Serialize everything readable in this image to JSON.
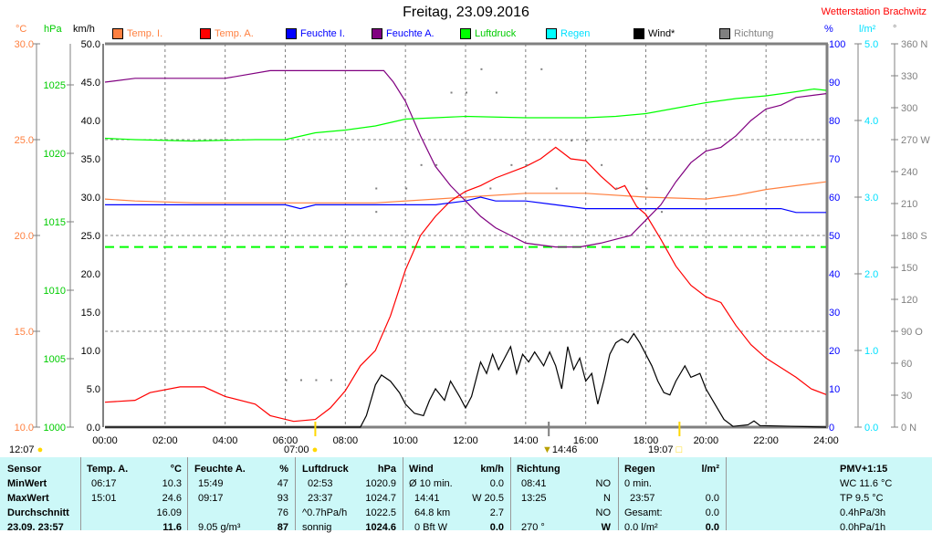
{
  "title": "Freitag, 23.09.2016",
  "station": "Wetterstation Brachwitz",
  "units": {
    "temp": "°C",
    "hpa": "hPa",
    "kmh": "km/h",
    "pct": "%",
    "rain": "l/m²",
    "deg": "°"
  },
  "legend": [
    {
      "label": "Temp. I.",
      "color": "#ff8040",
      "text": "#ff8040"
    },
    {
      "label": "Temp. A.",
      "color": "#ff0000",
      "text": "#ff8040"
    },
    {
      "label": "Feuchte I.",
      "color": "#0000ff",
      "text": "#0000ff"
    },
    {
      "label": "Feuchte A.",
      "color": "#800080",
      "text": "#0000ff"
    },
    {
      "label": "Luftdruck",
      "color": "#00ff00",
      "text": "#00cc00"
    },
    {
      "label": "Regen",
      "color": "#00ffff",
      "text": "#00e0ff"
    },
    {
      "label": "Wind*",
      "color": "#000000",
      "text": "#000000"
    },
    {
      "label": "Richtung",
      "color": "#808080",
      "text": "#808080"
    }
  ],
  "chart_data": {
    "type": "line",
    "title": "Freitag, 23.09.2016",
    "x_ticks": [
      "00:00",
      "02:00",
      "04:00",
      "06:00",
      "08:00",
      "10:00",
      "12:00",
      "14:00",
      "16:00",
      "18:00",
      "20:00",
      "22:00",
      "24:00"
    ],
    "axes": {
      "temp": {
        "range": [
          10,
          30
        ],
        "ticks": [
          "10.0",
          "15.0",
          "20.0",
          "25.0",
          "30.0"
        ],
        "color": "#ff8040"
      },
      "hpa": {
        "range": [
          1000,
          1028
        ],
        "ticks": [
          "1000",
          "1005",
          "1010",
          "1015",
          "1020",
          "1025"
        ],
        "color": "#00cc00"
      },
      "kmh": {
        "range": [
          0,
          50
        ],
        "ticks": [
          "0.0",
          "5.0",
          "10.0",
          "15.0",
          "20.0",
          "25.0",
          "30.0",
          "35.0",
          "40.0",
          "45.0",
          "50.0"
        ],
        "color": "#000000"
      },
      "pct": {
        "range": [
          0,
          100
        ],
        "ticks": [
          "0",
          "10",
          "20",
          "30",
          "40",
          "50",
          "60",
          "70",
          "80",
          "90",
          "100"
        ],
        "color": "#0000ff"
      },
      "rain": {
        "range": [
          0,
          5
        ],
        "ticks": [
          "0.0",
          "1.0",
          "2.0",
          "3.0",
          "4.0",
          "5.0"
        ],
        "color": "#00e0ff"
      },
      "deg": {
        "range": [
          0,
          360
        ],
        "ticks": [
          "0 N",
          "30",
          "60",
          "90 O",
          "120",
          "150",
          "180 S",
          "210",
          "240",
          "270 W",
          "300",
          "330",
          "360 N"
        ],
        "color": "#808080"
      }
    },
    "series": [
      {
        "name": "Temp. I.",
        "axis": "temp",
        "color": "#ff8040",
        "points": [
          [
            0,
            21.9
          ],
          [
            1,
            21.8
          ],
          [
            3,
            21.7
          ],
          [
            6,
            21.7
          ],
          [
            9,
            21.7
          ],
          [
            11,
            21.9
          ],
          [
            12,
            22.0
          ],
          [
            14,
            22.2
          ],
          [
            16,
            22.2
          ],
          [
            18,
            22.0
          ],
          [
            20,
            21.9
          ],
          [
            21,
            22.1
          ],
          [
            22,
            22.4
          ],
          [
            23,
            22.6
          ],
          [
            24,
            22.8
          ]
        ]
      },
      {
        "name": "Temp. A.",
        "axis": "temp",
        "color": "#ff0000",
        "points": [
          [
            0,
            11.3
          ],
          [
            1,
            11.4
          ],
          [
            1.5,
            11.8
          ],
          [
            2.5,
            12.1
          ],
          [
            3.3,
            12.1
          ],
          [
            4,
            11.6
          ],
          [
            5,
            11.2
          ],
          [
            5.5,
            10.6
          ],
          [
            6.28,
            10.3
          ],
          [
            7,
            10.4
          ],
          [
            7.5,
            11.0
          ],
          [
            8,
            11.9
          ],
          [
            8.5,
            13.2
          ],
          [
            9,
            14.0
          ],
          [
            9.5,
            15.8
          ],
          [
            10,
            18.2
          ],
          [
            10.5,
            20.0
          ],
          [
            11,
            21.0
          ],
          [
            11.5,
            21.8
          ],
          [
            12,
            22.3
          ],
          [
            12.5,
            22.6
          ],
          [
            13,
            23.0
          ],
          [
            14,
            23.6
          ],
          [
            14.5,
            24.0
          ],
          [
            15,
            24.6
          ],
          [
            15.5,
            24.0
          ],
          [
            16,
            23.9
          ],
          [
            16.5,
            23.1
          ],
          [
            17,
            22.4
          ],
          [
            17.3,
            22.6
          ],
          [
            17.7,
            21.5
          ],
          [
            18,
            21.1
          ],
          [
            18.5,
            19.8
          ],
          [
            19,
            18.4
          ],
          [
            19.5,
            17.4
          ],
          [
            20,
            16.8
          ],
          [
            20.5,
            16.5
          ],
          [
            21,
            15.3
          ],
          [
            21.5,
            14.3
          ],
          [
            22,
            13.6
          ],
          [
            22.5,
            13.1
          ],
          [
            23,
            12.6
          ],
          [
            23.5,
            12.0
          ],
          [
            24,
            11.7
          ]
        ]
      },
      {
        "name": "Feuchte I.",
        "axis": "pct",
        "color": "#0000ff",
        "points": [
          [
            0,
            58
          ],
          [
            6,
            58
          ],
          [
            6.5,
            57
          ],
          [
            7,
            58
          ],
          [
            9,
            58
          ],
          [
            11,
            58
          ],
          [
            12,
            59
          ],
          [
            12.5,
            60
          ],
          [
            13,
            59
          ],
          [
            14,
            59
          ],
          [
            15,
            58
          ],
          [
            16,
            57
          ],
          [
            18,
            57
          ],
          [
            20,
            57
          ],
          [
            22,
            57
          ],
          [
            22.5,
            57
          ],
          [
            23,
            56
          ],
          [
            24,
            56
          ]
        ]
      },
      {
        "name": "Feuchte A.",
        "axis": "pct",
        "color": "#800080",
        "points": [
          [
            0,
            90
          ],
          [
            1,
            91
          ],
          [
            2,
            91
          ],
          [
            4,
            91
          ],
          [
            5.5,
            93
          ],
          [
            9.28,
            93
          ],
          [
            9.6,
            90
          ],
          [
            10,
            85
          ],
          [
            10.5,
            76
          ],
          [
            11,
            68
          ],
          [
            11.5,
            63
          ],
          [
            12,
            59
          ],
          [
            12.5,
            55
          ],
          [
            13,
            52
          ],
          [
            13.5,
            50
          ],
          [
            14,
            48
          ],
          [
            15,
            47
          ],
          [
            15.8,
            47
          ],
          [
            16.5,
            48
          ],
          [
            17,
            49
          ],
          [
            17.5,
            50
          ],
          [
            18,
            54
          ],
          [
            18.5,
            58
          ],
          [
            19,
            64
          ],
          [
            19.5,
            69
          ],
          [
            20,
            72
          ],
          [
            20.5,
            73
          ],
          [
            21,
            76
          ],
          [
            21.5,
            80
          ],
          [
            22,
            83
          ],
          [
            22.5,
            84
          ],
          [
            23,
            86
          ],
          [
            24,
            87
          ]
        ]
      },
      {
        "name": "Luftdruck",
        "axis": "hpa",
        "color": "#00ff00",
        "points": [
          [
            0,
            1021.1
          ],
          [
            1,
            1021.0
          ],
          [
            2.9,
            1020.9
          ],
          [
            5,
            1021.0
          ],
          [
            6,
            1021.0
          ],
          [
            7,
            1021.5
          ],
          [
            8,
            1021.7
          ],
          [
            9,
            1022.0
          ],
          [
            10,
            1022.5
          ],
          [
            11,
            1022.6
          ],
          [
            12,
            1022.7
          ],
          [
            14,
            1022.6
          ],
          [
            16,
            1022.6
          ],
          [
            17,
            1022.7
          ],
          [
            18,
            1022.9
          ],
          [
            19,
            1023.3
          ],
          [
            20,
            1023.7
          ],
          [
            21,
            1024.0
          ],
          [
            22,
            1024.2
          ],
          [
            23,
            1024.5
          ],
          [
            23.6,
            1024.7
          ],
          [
            24,
            1024.6
          ]
        ]
      },
      {
        "name": "Wind*",
        "axis": "kmh",
        "color": "#000000",
        "points": [
          [
            0,
            0
          ],
          [
            8.5,
            0
          ],
          [
            8.7,
            1.5
          ],
          [
            9,
            5.5
          ],
          [
            9.2,
            6.8
          ],
          [
            9.5,
            6
          ],
          [
            9.8,
            4.5
          ],
          [
            10,
            3
          ],
          [
            10.3,
            1.8
          ],
          [
            10.6,
            1.5
          ],
          [
            10.8,
            3.5
          ],
          [
            11.0,
            5
          ],
          [
            11.3,
            3.5
          ],
          [
            11.5,
            6
          ],
          [
            11.8,
            4
          ],
          [
            12,
            2.5
          ],
          [
            12.2,
            4
          ],
          [
            12.3,
            5.5
          ],
          [
            12.5,
            8.5
          ],
          [
            12.7,
            7
          ],
          [
            12.9,
            9.5
          ],
          [
            13.1,
            7.5
          ],
          [
            13.3,
            9
          ],
          [
            13.5,
            10.5
          ],
          [
            13.7,
            7
          ],
          [
            13.9,
            9.5
          ],
          [
            14.1,
            8.5
          ],
          [
            14.3,
            9.8
          ],
          [
            14.6,
            8
          ],
          [
            14.8,
            9.8
          ],
          [
            15,
            8
          ],
          [
            15.2,
            5
          ],
          [
            15.4,
            10.5
          ],
          [
            15.6,
            7.5
          ],
          [
            15.8,
            9
          ],
          [
            16,
            6
          ],
          [
            16.2,
            7
          ],
          [
            16.4,
            3
          ],
          [
            16.6,
            6
          ],
          [
            16.8,
            9.5
          ],
          [
            17,
            11
          ],
          [
            17.2,
            11.5
          ],
          [
            17.4,
            11
          ],
          [
            17.6,
            12.2
          ],
          [
            17.8,
            11
          ],
          [
            18,
            9.5
          ],
          [
            18.2,
            8
          ],
          [
            18.4,
            6
          ],
          [
            18.6,
            4.5
          ],
          [
            18.8,
            4.2
          ],
          [
            19,
            6
          ],
          [
            19.3,
            8
          ],
          [
            19.5,
            6.5
          ],
          [
            19.8,
            7
          ],
          [
            20,
            5
          ],
          [
            20.3,
            3
          ],
          [
            20.6,
            1
          ],
          [
            20.9,
            0.1
          ],
          [
            21.4,
            0.3
          ],
          [
            21.6,
            0.8
          ],
          [
            21.8,
            0.2
          ],
          [
            24,
            0
          ]
        ]
      },
      {
        "name": "Richtung",
        "axis": "deg",
        "color": "#808080",
        "type": "scatter",
        "points": [
          [
            6,
            45
          ],
          [
            6.5,
            45
          ],
          [
            7,
            45
          ],
          [
            7.5,
            45
          ],
          [
            8,
            135
          ],
          [
            9,
            225
          ],
          [
            9,
            203
          ],
          [
            10,
            225
          ],
          [
            10.5,
            247
          ],
          [
            11,
            247
          ],
          [
            11.5,
            315
          ],
          [
            12,
            315
          ],
          [
            12.5,
            337
          ],
          [
            13,
            315
          ],
          [
            14,
            247
          ],
          [
            14.5,
            337
          ],
          [
            15,
            225
          ],
          [
            15.5,
            270
          ],
          [
            16,
            270
          ],
          [
            16.5,
            247
          ],
          [
            17,
            225
          ],
          [
            18,
            225
          ],
          [
            18.5,
            203
          ],
          [
            13.5,
            247
          ],
          [
            12.8,
            225
          ]
        ]
      }
    ],
    "reference_line": {
      "axis": "pct",
      "value": 47,
      "color": "#00ff00",
      "style": "dashed"
    }
  },
  "sun": {
    "moon_time": "12:07",
    "sunrise": "07:00",
    "wind_max_time": "14:46",
    "sunset": "19:07"
  },
  "table": {
    "headers": {
      "sensor": "Sensor",
      "temp": "Temp. A.",
      "temp_unit": "°C",
      "hum": "Feuchte A.",
      "hum_unit": "%",
      "press": "Luftdruck",
      "press_unit": "hPa",
      "wind": "Wind",
      "wind_unit": "km/h",
      "dir": "Richtung",
      "rain": "Regen",
      "rain_unit": "l/m²",
      "pmv": "PMV+1:15"
    },
    "rows": [
      {
        "label": "MinWert",
        "t_time": "06:17",
        "t_val": "10.3",
        "h_time": "15:49",
        "h_val": "47",
        "p_time": "02:53",
        "p_val": "1020.9",
        "w_label": "Ø 10 min.",
        "w_val": "0.0",
        "d_time": "08:41",
        "d_val": "NO",
        "r_label": "0 min.",
        "r_val": "",
        "x": "WC 11.6 °C"
      },
      {
        "label": "MaxWert",
        "t_time": "15:01",
        "t_val": "24.6",
        "h_time": "09:17",
        "h_val": "93",
        "p_time": "23:37",
        "p_val": "1024.7",
        "w_label": "14:41",
        "w_val": "W 20.5",
        "d_time": "13:25",
        "d_val": "N",
        "r_label": "23:57",
        "r_val": "0.0",
        "x": "TP 9.5 °C"
      },
      {
        "label": "Durchschnitt",
        "t_time": "",
        "t_val": "16.09",
        "h_time": "",
        "h_val": "76",
        "p_time": "^0.7hPa/h",
        "p_val": "1022.5",
        "w_label": "64.8 km",
        "w_val": "2.7",
        "d_time": "",
        "d_val": "NO",
        "r_label": "Gesamt:",
        "r_val": "0.0",
        "x": "0.4hPa/3h"
      },
      {
        "label": "23.09. 23:57",
        "t_time": "",
        "t_val": "11.6",
        "h_time": "9.05 g/m³",
        "h_val": "87",
        "p_time": "sonnig",
        "p_val": "1024.6",
        "w_label": "0 Bft W",
        "w_val": "0.0",
        "d_time": "270 °",
        "d_val": "W",
        "r_label": "0.0 l/m²",
        "r_val": "0.0",
        "x": "0.0hPa/1h"
      }
    ]
  }
}
